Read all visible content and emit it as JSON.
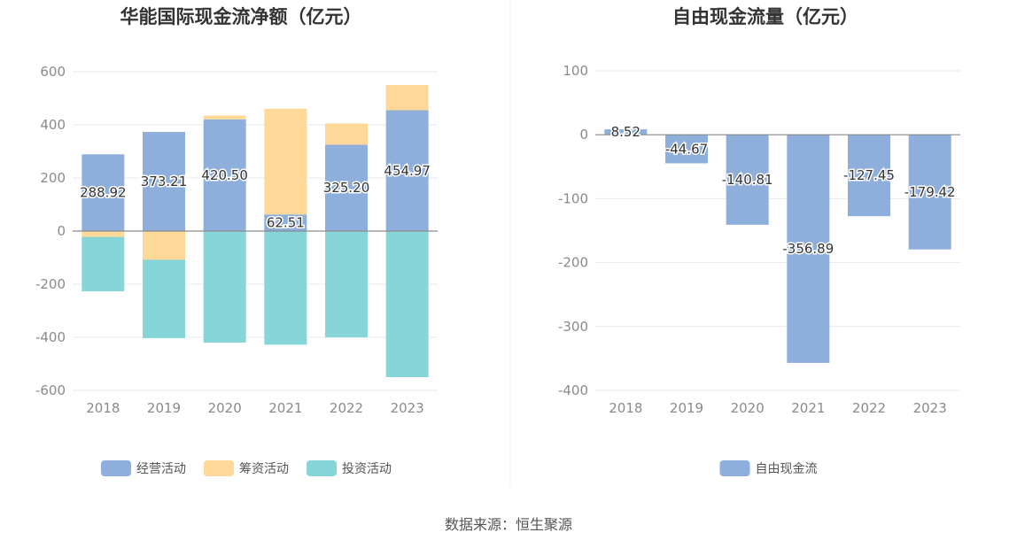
{
  "source": "数据来源：恒生聚源",
  "chart_data": [
    {
      "type": "bar",
      "title": "华能国际现金流净额（亿元）",
      "categories": [
        "2018",
        "2019",
        "2020",
        "2021",
        "2022",
        "2023"
      ],
      "ylim": [
        -600,
        600
      ],
      "yticks": [
        "600",
        "400",
        "200",
        "0",
        "-200",
        "-400",
        "-600"
      ],
      "stacked": true,
      "grid": true,
      "legend_position": "bottom",
      "series": [
        {
          "name": "经营活动",
          "color": "#8eaedb",
          "values": [
            288.92,
            373.21,
            420.5,
            62.51,
            325.2,
            454.97
          ],
          "labels": [
            "288.92",
            "373.21",
            "420.50",
            "62.51",
            "325.20",
            "454.97"
          ]
        },
        {
          "name": "筹资活动",
          "color": "#fdd898",
          "values": [
            -22,
            -108,
            14,
            398,
            80,
            95
          ]
        },
        {
          "name": "投资活动",
          "color": "#86d5d9",
          "values": [
            -205,
            -295,
            -420,
            -428,
            -400,
            -550
          ]
        }
      ]
    },
    {
      "type": "bar",
      "title": "自由现金流量（亿元）",
      "categories": [
        "2018",
        "2019",
        "2020",
        "2021",
        "2022",
        "2023"
      ],
      "ylim": [
        -400,
        100
      ],
      "yticks": [
        "100",
        "0",
        "-100",
        "-200",
        "-300",
        "-400"
      ],
      "grid": true,
      "legend_position": "bottom",
      "series": [
        {
          "name": "自由现金流",
          "color": "#8eaedb",
          "values": [
            8.52,
            -44.67,
            -140.81,
            -356.89,
            -127.45,
            -179.42
          ],
          "labels": [
            "8.52",
            "-44.67",
            "-140.81",
            "-356.89",
            "-127.45",
            "-179.42"
          ]
        }
      ]
    }
  ]
}
